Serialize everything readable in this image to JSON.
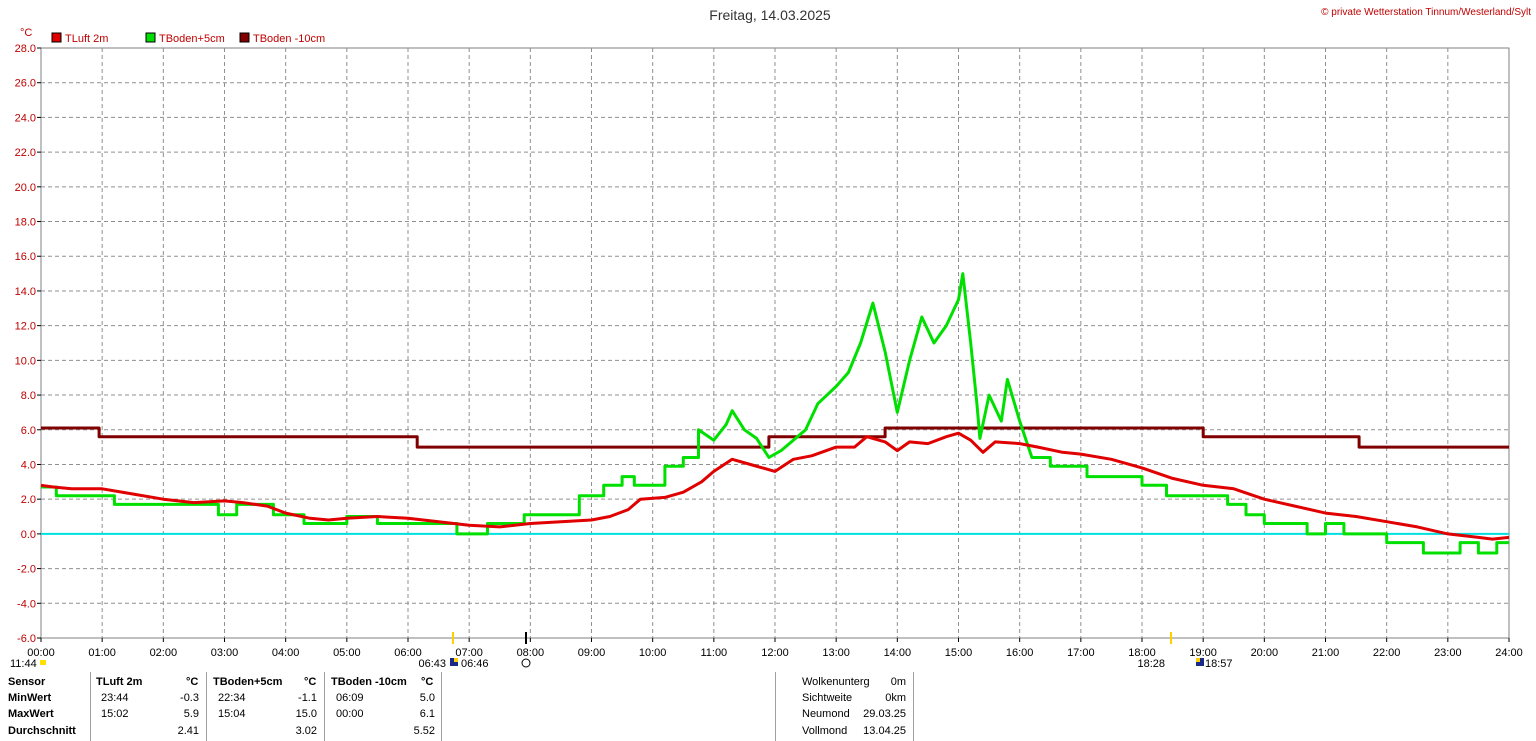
{
  "header": {
    "title": "Freitag, 14.03.2025",
    "copyright": "© private Wetterstation Tinnum/Westerland/Sylt"
  },
  "chart_data": {
    "type": "line",
    "ylabel": "°C",
    "ylim": [
      -6,
      28
    ],
    "xlim": [
      0,
      24
    ],
    "grid": true,
    "legend_position": "top-left",
    "y_ticks": [
      "28.0",
      "26.0",
      "24.0",
      "22.0",
      "20.0",
      "18.0",
      "16.0",
      "14.0",
      "12.0",
      "10.0",
      "8.0",
      "6.0",
      "4.0",
      "2.0",
      "0.0",
      "-2.0",
      "-4.0",
      "-6.0"
    ],
    "x_ticks": [
      "00:00",
      "01:00",
      "02:00",
      "03:00",
      "04:00",
      "05:00",
      "06:00",
      "07:00",
      "08:00",
      "09:00",
      "10:00",
      "11:00",
      "12:00",
      "13:00",
      "14:00",
      "15:00",
      "16:00",
      "17:00",
      "18:00",
      "19:00",
      "20:00",
      "21:00",
      "22:00",
      "23:00",
      "24:00"
    ],
    "zero_line": {
      "y": 0.0,
      "color": "#00e0e0"
    },
    "series": [
      {
        "name": "TLuft 2m",
        "color": "#e00000",
        "points": [
          [
            0,
            2.8
          ],
          [
            0.2,
            2.7
          ],
          [
            0.5,
            2.6
          ],
          [
            1.0,
            2.6
          ],
          [
            1.5,
            2.3
          ],
          [
            2.0,
            2.0
          ],
          [
            2.5,
            1.8
          ],
          [
            3.0,
            1.9
          ],
          [
            3.3,
            1.8
          ],
          [
            3.7,
            1.6
          ],
          [
            4.0,
            1.2
          ],
          [
            4.4,
            0.9
          ],
          [
            4.7,
            0.8
          ],
          [
            5.0,
            0.9
          ],
          [
            5.5,
            1.0
          ],
          [
            6.0,
            0.9
          ],
          [
            6.5,
            0.7
          ],
          [
            7.0,
            0.5
          ],
          [
            7.5,
            0.4
          ],
          [
            8.0,
            0.6
          ],
          [
            8.5,
            0.7
          ],
          [
            9.0,
            0.8
          ],
          [
            9.3,
            1.0
          ],
          [
            9.6,
            1.4
          ],
          [
            9.8,
            2.0
          ],
          [
            10.2,
            2.1
          ],
          [
            10.5,
            2.4
          ],
          [
            10.8,
            3.0
          ],
          [
            11.0,
            3.6
          ],
          [
            11.3,
            4.3
          ],
          [
            11.6,
            4.0
          ],
          [
            12.0,
            3.6
          ],
          [
            12.3,
            4.3
          ],
          [
            12.6,
            4.5
          ],
          [
            13.0,
            5.0
          ],
          [
            13.3,
            5.0
          ],
          [
            13.5,
            5.6
          ],
          [
            13.8,
            5.3
          ],
          [
            14.0,
            4.8
          ],
          [
            14.2,
            5.3
          ],
          [
            14.5,
            5.2
          ],
          [
            14.8,
            5.6
          ],
          [
            15.0,
            5.8
          ],
          [
            15.2,
            5.4
          ],
          [
            15.4,
            4.7
          ],
          [
            15.6,
            5.3
          ],
          [
            16.0,
            5.2
          ],
          [
            16.3,
            5.0
          ],
          [
            16.7,
            4.7
          ],
          [
            17.0,
            4.6
          ],
          [
            17.5,
            4.3
          ],
          [
            18.0,
            3.8
          ],
          [
            18.5,
            3.2
          ],
          [
            19.0,
            2.8
          ],
          [
            19.5,
            2.6
          ],
          [
            20.0,
            2.0
          ],
          [
            20.5,
            1.6
          ],
          [
            21.0,
            1.2
          ],
          [
            21.5,
            1.0
          ],
          [
            22.0,
            0.7
          ],
          [
            22.5,
            0.4
          ],
          [
            23.0,
            0.0
          ],
          [
            23.5,
            -0.2
          ],
          [
            23.73,
            -0.3
          ],
          [
            24.0,
            -0.2
          ]
        ]
      },
      {
        "name": "TBoden+5cm",
        "color": "#00e000",
        "points": [
          [
            0,
            2.7
          ],
          [
            0.25,
            2.7
          ],
          [
            0.25,
            2.2
          ],
          [
            1.2,
            2.2
          ],
          [
            1.2,
            1.7
          ],
          [
            2.9,
            1.7
          ],
          [
            2.9,
            1.1
          ],
          [
            3.2,
            1.1
          ],
          [
            3.2,
            1.7
          ],
          [
            3.8,
            1.7
          ],
          [
            3.8,
            1.1
          ],
          [
            4.3,
            1.1
          ],
          [
            4.3,
            0.6
          ],
          [
            5.0,
            0.6
          ],
          [
            5.0,
            1.0
          ],
          [
            5.5,
            1.0
          ],
          [
            5.5,
            0.6
          ],
          [
            6.8,
            0.6
          ],
          [
            6.8,
            0.0
          ],
          [
            7.3,
            0.0
          ],
          [
            7.3,
            0.6
          ],
          [
            7.9,
            0.6
          ],
          [
            7.9,
            1.1
          ],
          [
            8.8,
            1.1
          ],
          [
            8.8,
            2.2
          ],
          [
            9.2,
            2.2
          ],
          [
            9.2,
            2.8
          ],
          [
            9.5,
            2.8
          ],
          [
            9.5,
            3.3
          ],
          [
            9.7,
            3.3
          ],
          [
            9.7,
            2.8
          ],
          [
            10.2,
            2.8
          ],
          [
            10.2,
            3.9
          ],
          [
            10.5,
            3.9
          ],
          [
            10.5,
            4.4
          ],
          [
            10.75,
            4.4
          ],
          [
            10.75,
            6.0
          ],
          [
            11.0,
            5.4
          ],
          [
            11.2,
            6.3
          ],
          [
            11.3,
            7.1
          ],
          [
            11.5,
            6.0
          ],
          [
            11.7,
            5.5
          ],
          [
            11.9,
            4.4
          ],
          [
            12.1,
            4.8
          ],
          [
            12.5,
            6.0
          ],
          [
            12.7,
            7.5
          ],
          [
            13.0,
            8.5
          ],
          [
            13.2,
            9.3
          ],
          [
            13.4,
            11.0
          ],
          [
            13.6,
            13.3
          ],
          [
            13.8,
            10.5
          ],
          [
            14.0,
            7.0
          ],
          [
            14.2,
            10.0
          ],
          [
            14.4,
            12.5
          ],
          [
            14.6,
            11.0
          ],
          [
            14.8,
            12.0
          ],
          [
            15.0,
            13.5
          ],
          [
            15.07,
            15.0
          ],
          [
            15.2,
            11.0
          ],
          [
            15.3,
            7.5
          ],
          [
            15.35,
            5.5
          ],
          [
            15.5,
            8.0
          ],
          [
            15.7,
            6.5
          ],
          [
            15.8,
            8.9
          ],
          [
            16.0,
            6.5
          ],
          [
            16.2,
            4.4
          ],
          [
            16.5,
            4.4
          ],
          [
            16.5,
            3.9
          ],
          [
            17.1,
            3.9
          ],
          [
            17.1,
            3.3
          ],
          [
            18.0,
            3.3
          ],
          [
            18.0,
            2.8
          ],
          [
            18.4,
            2.8
          ],
          [
            18.4,
            2.2
          ],
          [
            19.4,
            2.2
          ],
          [
            19.4,
            1.7
          ],
          [
            19.7,
            1.7
          ],
          [
            19.7,
            1.1
          ],
          [
            20.0,
            1.1
          ],
          [
            20.0,
            0.6
          ],
          [
            20.7,
            0.6
          ],
          [
            20.7,
            0.0
          ],
          [
            21.0,
            0.0
          ],
          [
            21.0,
            0.6
          ],
          [
            21.3,
            0.6
          ],
          [
            21.3,
            0.0
          ],
          [
            22.0,
            0.0
          ],
          [
            22.0,
            -0.5
          ],
          [
            22.6,
            -0.5
          ],
          [
            22.6,
            -1.1
          ],
          [
            23.2,
            -1.1
          ],
          [
            23.2,
            -0.5
          ],
          [
            23.5,
            -0.5
          ],
          [
            23.5,
            -1.1
          ],
          [
            23.8,
            -1.1
          ],
          [
            23.8,
            -0.5
          ],
          [
            24.0,
            -0.5
          ]
        ]
      },
      {
        "name": "TBoden -10cm",
        "color": "#800000",
        "points": [
          [
            0,
            6.1
          ],
          [
            0.95,
            6.1
          ],
          [
            0.95,
            5.6
          ],
          [
            6.15,
            5.6
          ],
          [
            6.15,
            5.0
          ],
          [
            11.9,
            5.0
          ],
          [
            11.9,
            5.6
          ],
          [
            13.8,
            5.6
          ],
          [
            13.8,
            6.1
          ],
          [
            19.0,
            6.1
          ],
          [
            19.0,
            5.6
          ],
          [
            21.55,
            5.6
          ],
          [
            21.55,
            5.0
          ],
          [
            24.0,
            5.0
          ]
        ]
      }
    ]
  },
  "sun_markers": {
    "left_time": "11:44",
    "sunrise_dawn": "06:43",
    "sunrise": "06:46",
    "sunset": "18:28",
    "sunset_dusk": "18:57"
  },
  "stats": {
    "headers": [
      "Sensor",
      "TLuft 2m",
      "°C",
      "TBoden+5cm",
      "°C",
      "TBoden -10cm",
      "°C"
    ],
    "rows": [
      {
        "label": "MinWert",
        "t1": "23:44",
        "v1": "-0.3",
        "t2": "22:34",
        "v2": "-1.1",
        "t3": "06:09",
        "v3": "5.0"
      },
      {
        "label": "MaxWert",
        "t1": "15:02",
        "v1": "5.9",
        "t2": "15:04",
        "v2": "15.0",
        "t3": "00:00",
        "v3": "6.1"
      },
      {
        "label": "Durchschnitt",
        "t1": "",
        "v1": "2.41",
        "t2": "",
        "v2": "3.02",
        "t3": "",
        "v3": "5.52"
      }
    ]
  },
  "info": {
    "rows": [
      {
        "label": "Wolkenunterg",
        "value": "0m"
      },
      {
        "label": "Sichtweite",
        "value": "0km"
      },
      {
        "label": "Neumond",
        "value": "29.03.25"
      },
      {
        "label": "Vollmond",
        "value": "13.04.25"
      }
    ]
  }
}
